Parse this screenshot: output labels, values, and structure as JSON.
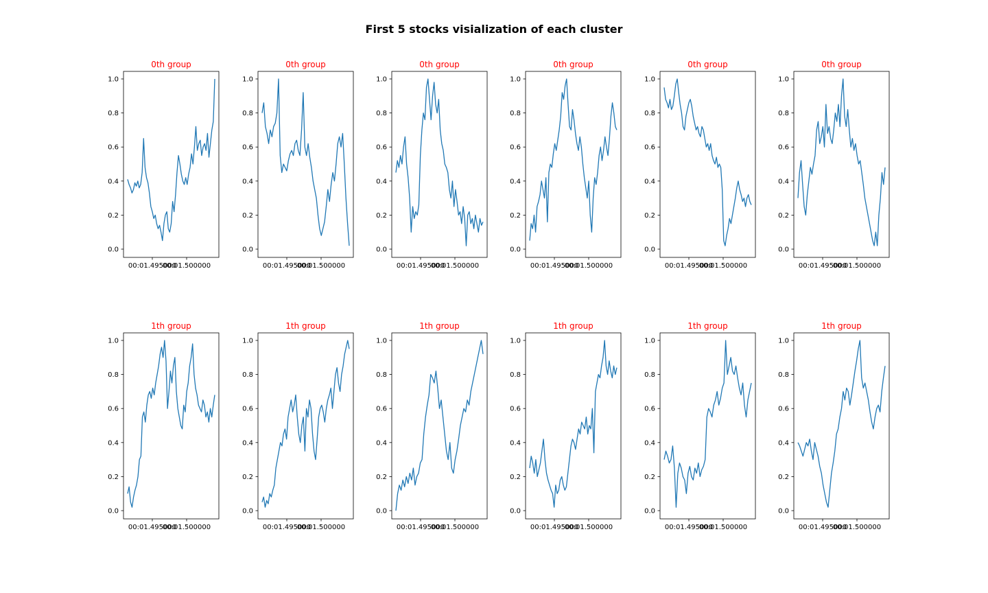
{
  "figure": {
    "title": "First 5 stocks visialization of each cluster",
    "title_color": "#000000",
    "subtitle_color": "#ff0000",
    "line_color": "#1f77b4"
  },
  "chart_data": [
    {
      "type": "line",
      "title": "0th group",
      "row": 0,
      "col": 0,
      "ylim": [
        0,
        1
      ],
      "yticks": [
        "0.0",
        "0.2",
        "0.4",
        "0.6",
        "0.8",
        "1.0"
      ],
      "xticks": [
        "00:01.495000",
        "00:01.500000"
      ],
      "values": [
        0.41,
        0.38,
        0.36,
        0.33,
        0.35,
        0.39,
        0.37,
        0.4,
        0.36,
        0.38,
        0.45,
        0.65,
        0.48,
        0.42,
        0.39,
        0.33,
        0.25,
        0.22,
        0.18,
        0.2,
        0.15,
        0.12,
        0.14,
        0.1,
        0.05,
        0.15,
        0.2,
        0.22,
        0.12,
        0.1,
        0.15,
        0.28,
        0.22,
        0.32,
        0.45,
        0.55,
        0.5,
        0.44,
        0.4,
        0.38,
        0.42,
        0.38,
        0.44,
        0.48,
        0.56,
        0.5,
        0.6,
        0.72,
        0.58,
        0.62,
        0.64,
        0.55,
        0.6,
        0.62,
        0.58,
        0.68,
        0.54,
        0.62,
        0.7,
        0.75,
        1.0
      ]
    },
    {
      "type": "line",
      "title": "0th group",
      "row": 0,
      "col": 1,
      "ylim": [
        0,
        1
      ],
      "yticks": [
        "0.0",
        "0.2",
        "0.4",
        "0.6",
        "0.8",
        "1.0"
      ],
      "xticks": [
        "00:01.495000",
        "00:01.500000"
      ],
      "values": [
        0.8,
        0.86,
        0.72,
        0.68,
        0.62,
        0.7,
        0.66,
        0.72,
        0.74,
        0.8,
        1.0,
        0.55,
        0.45,
        0.5,
        0.48,
        0.46,
        0.52,
        0.56,
        0.58,
        0.55,
        0.62,
        0.64,
        0.58,
        0.55,
        0.7,
        0.92,
        0.6,
        0.55,
        0.62,
        0.54,
        0.48,
        0.4,
        0.35,
        0.3,
        0.2,
        0.12,
        0.08,
        0.12,
        0.16,
        0.25,
        0.35,
        0.28,
        0.38,
        0.45,
        0.4,
        0.5,
        0.62,
        0.66,
        0.6,
        0.68,
        0.5,
        0.3,
        0.15,
        0.02
      ]
    },
    {
      "type": "line",
      "title": "0th group",
      "row": 0,
      "col": 2,
      "ylim": [
        0,
        1
      ],
      "yticks": [
        "0.0",
        "0.2",
        "0.4",
        "0.6",
        "0.8",
        "1.0"
      ],
      "xticks": [
        "00:01.495000",
        "00:01.500000"
      ],
      "values": [
        0.45,
        0.52,
        0.48,
        0.55,
        0.5,
        0.6,
        0.66,
        0.5,
        0.42,
        0.3,
        0.1,
        0.25,
        0.18,
        0.22,
        0.2,
        0.26,
        0.55,
        0.7,
        0.8,
        0.76,
        0.95,
        1.0,
        0.88,
        0.76,
        0.9,
        0.98,
        0.85,
        0.8,
        0.88,
        0.7,
        0.62,
        0.58,
        0.5,
        0.48,
        0.45,
        0.35,
        0.3,
        0.4,
        0.25,
        0.35,
        0.28,
        0.2,
        0.22,
        0.15,
        0.25,
        0.18,
        0.02,
        0.2,
        0.22,
        0.15,
        0.18,
        0.12,
        0.2,
        0.15,
        0.1,
        0.18,
        0.14,
        0.16
      ]
    },
    {
      "type": "line",
      "title": "0th group",
      "row": 0,
      "col": 3,
      "ylim": [
        0,
        1
      ],
      "yticks": [
        "0.0",
        "0.2",
        "0.4",
        "0.6",
        "0.8",
        "1.0"
      ],
      "xticks": [
        "00:01.495000",
        "00:01.500000"
      ],
      "values": [
        0.05,
        0.15,
        0.12,
        0.2,
        0.1,
        0.25,
        0.28,
        0.32,
        0.4,
        0.35,
        0.3,
        0.42,
        0.16,
        0.45,
        0.5,
        0.48,
        0.56,
        0.62,
        0.58,
        0.64,
        0.7,
        0.78,
        0.92,
        0.88,
        0.96,
        1.0,
        0.85,
        0.72,
        0.7,
        0.82,
        0.76,
        0.68,
        0.62,
        0.58,
        0.66,
        0.6,
        0.5,
        0.42,
        0.36,
        0.3,
        0.4,
        0.2,
        0.1,
        0.3,
        0.42,
        0.38,
        0.45,
        0.55,
        0.6,
        0.52,
        0.58,
        0.66,
        0.6,
        0.55,
        0.65,
        0.78,
        0.86,
        0.8,
        0.72,
        0.7
      ]
    },
    {
      "type": "line",
      "title": "0th group",
      "row": 0,
      "col": 4,
      "ylim": [
        0,
        1
      ],
      "yticks": [
        "0.0",
        "0.2",
        "0.4",
        "0.6",
        "0.8",
        "1.0"
      ],
      "xticks": [
        "00:01.495000",
        "00:01.500000"
      ],
      "values": [
        0.95,
        0.88,
        0.86,
        0.83,
        0.88,
        0.82,
        0.84,
        0.9,
        0.97,
        1.0,
        0.92,
        0.85,
        0.8,
        0.72,
        0.7,
        0.78,
        0.82,
        0.86,
        0.88,
        0.84,
        0.78,
        0.74,
        0.7,
        0.72,
        0.68,
        0.66,
        0.72,
        0.7,
        0.65,
        0.6,
        0.62,
        0.58,
        0.62,
        0.55,
        0.52,
        0.5,
        0.54,
        0.48,
        0.5,
        0.48,
        0.35,
        0.05,
        0.02,
        0.08,
        0.12,
        0.18,
        0.15,
        0.2,
        0.25,
        0.3,
        0.36,
        0.4,
        0.35,
        0.32,
        0.28,
        0.3,
        0.25,
        0.3,
        0.32,
        0.28,
        0.26
      ]
    },
    {
      "type": "line",
      "title": "0th group",
      "row": 0,
      "col": 5,
      "ylim": [
        0,
        1
      ],
      "yticks": [
        "0.0",
        "0.2",
        "0.4",
        "0.6",
        "0.8",
        "1.0"
      ],
      "xticks": [
        "00:01.495000",
        "00:01.500000"
      ],
      "values": [
        0.3,
        0.45,
        0.52,
        0.38,
        0.25,
        0.2,
        0.32,
        0.4,
        0.48,
        0.44,
        0.5,
        0.55,
        0.7,
        0.75,
        0.62,
        0.66,
        0.72,
        0.6,
        0.85,
        0.68,
        0.72,
        0.65,
        0.62,
        0.7,
        0.8,
        0.75,
        0.85,
        0.72,
        0.9,
        1.0,
        0.78,
        0.72,
        0.82,
        0.7,
        0.6,
        0.65,
        0.58,
        0.62,
        0.55,
        0.5,
        0.52,
        0.45,
        0.38,
        0.3,
        0.25,
        0.2,
        0.15,
        0.1,
        0.05,
        0.02,
        0.1,
        0.02,
        0.2,
        0.3,
        0.45,
        0.38,
        0.48
      ]
    },
    {
      "type": "line",
      "title": "1th group",
      "row": 1,
      "col": 0,
      "ylim": [
        0,
        1
      ],
      "yticks": [
        "0.0",
        "0.2",
        "0.4",
        "0.6",
        "0.8",
        "1.0"
      ],
      "xticks": [
        "00:01.495000",
        "00:01.500000"
      ],
      "values": [
        0.1,
        0.14,
        0.05,
        0.02,
        0.08,
        0.12,
        0.15,
        0.2,
        0.3,
        0.32,
        0.55,
        0.58,
        0.52,
        0.62,
        0.68,
        0.7,
        0.66,
        0.72,
        0.68,
        0.75,
        0.8,
        0.85,
        0.92,
        0.96,
        0.9,
        1.0,
        0.88,
        0.6,
        0.7,
        0.82,
        0.75,
        0.85,
        0.9,
        0.7,
        0.6,
        0.55,
        0.5,
        0.48,
        0.62,
        0.58,
        0.7,
        0.75,
        0.85,
        0.9,
        0.98,
        0.8,
        0.72,
        0.68,
        0.62,
        0.6,
        0.58,
        0.65,
        0.62,
        0.55,
        0.58,
        0.52,
        0.6,
        0.55,
        0.62,
        0.68
      ]
    },
    {
      "type": "line",
      "title": "1th group",
      "row": 1,
      "col": 1,
      "ylim": [
        0,
        1
      ],
      "yticks": [
        "0.0",
        "0.2",
        "0.4",
        "0.6",
        "0.8",
        "1.0"
      ],
      "xticks": [
        "00:01.495000",
        "00:01.500000"
      ],
      "values": [
        0.05,
        0.08,
        0.02,
        0.06,
        0.04,
        0.1,
        0.08,
        0.12,
        0.15,
        0.25,
        0.3,
        0.35,
        0.4,
        0.38,
        0.45,
        0.48,
        0.42,
        0.55,
        0.6,
        0.65,
        0.58,
        0.62,
        0.68,
        0.55,
        0.45,
        0.4,
        0.5,
        0.55,
        0.35,
        0.6,
        0.55,
        0.65,
        0.6,
        0.45,
        0.35,
        0.3,
        0.42,
        0.55,
        0.6,
        0.62,
        0.58,
        0.52,
        0.6,
        0.65,
        0.68,
        0.72,
        0.6,
        0.7,
        0.8,
        0.84,
        0.75,
        0.7,
        0.8,
        0.85,
        0.92,
        0.96,
        1.0,
        0.95
      ]
    },
    {
      "type": "line",
      "title": "1th group",
      "row": 1,
      "col": 2,
      "ylim": [
        0,
        1
      ],
      "yticks": [
        "0.0",
        "0.2",
        "0.4",
        "0.6",
        "0.8",
        "1.0"
      ],
      "xticks": [
        "00:01.495000",
        "00:01.500000"
      ],
      "values": [
        0.0,
        0.1,
        0.15,
        0.12,
        0.18,
        0.14,
        0.2,
        0.16,
        0.22,
        0.18,
        0.25,
        0.15,
        0.2,
        0.22,
        0.28,
        0.3,
        0.45,
        0.55,
        0.62,
        0.68,
        0.8,
        0.78,
        0.75,
        0.82,
        0.72,
        0.6,
        0.65,
        0.55,
        0.45,
        0.35,
        0.3,
        0.4,
        0.25,
        0.22,
        0.3,
        0.35,
        0.42,
        0.5,
        0.55,
        0.6,
        0.58,
        0.65,
        0.62,
        0.7,
        0.75,
        0.8,
        0.85,
        0.9,
        0.95,
        1.0,
        0.92
      ]
    },
    {
      "type": "line",
      "title": "1th group",
      "row": 1,
      "col": 3,
      "ylim": [
        0,
        1
      ],
      "yticks": [
        "0.0",
        "0.2",
        "0.4",
        "0.6",
        "0.8",
        "1.0"
      ],
      "xticks": [
        "00:01.495000",
        "00:01.500000"
      ],
      "values": [
        0.25,
        0.32,
        0.28,
        0.22,
        0.3,
        0.2,
        0.24,
        0.28,
        0.35,
        0.42,
        0.3,
        0.22,
        0.18,
        0.15,
        0.12,
        0.1,
        0.02,
        0.15,
        0.1,
        0.12,
        0.18,
        0.2,
        0.15,
        0.12,
        0.14,
        0.22,
        0.3,
        0.38,
        0.42,
        0.4,
        0.36,
        0.42,
        0.48,
        0.45,
        0.52,
        0.5,
        0.48,
        0.55,
        0.45,
        0.5,
        0.48,
        0.6,
        0.34,
        0.7,
        0.75,
        0.8,
        0.78,
        0.85,
        0.9,
        1.0,
        0.85,
        0.8,
        0.88,
        0.82,
        0.78,
        0.85,
        0.8,
        0.84
      ]
    },
    {
      "type": "line",
      "title": "1th group",
      "row": 1,
      "col": 4,
      "ylim": [
        0,
        1
      ],
      "yticks": [
        "0.0",
        "0.2",
        "0.4",
        "0.6",
        "0.8",
        "1.0"
      ],
      "xticks": [
        "00:01.495000",
        "00:01.500000"
      ],
      "values": [
        0.3,
        0.35,
        0.32,
        0.28,
        0.3,
        0.38,
        0.25,
        0.02,
        0.22,
        0.28,
        0.25,
        0.2,
        0.18,
        0.1,
        0.22,
        0.26,
        0.2,
        0.18,
        0.25,
        0.22,
        0.28,
        0.2,
        0.24,
        0.26,
        0.3,
        0.55,
        0.6,
        0.58,
        0.55,
        0.62,
        0.65,
        0.7,
        0.62,
        0.66,
        0.72,
        0.75,
        1.0,
        0.8,
        0.85,
        0.9,
        0.82,
        0.8,
        0.85,
        0.78,
        0.72,
        0.68,
        0.75,
        0.62,
        0.55,
        0.65,
        0.7,
        0.75
      ]
    },
    {
      "type": "line",
      "title": "1th group",
      "row": 1,
      "col": 5,
      "ylim": [
        0,
        1
      ],
      "yticks": [
        "0.0",
        "0.2",
        "0.4",
        "0.6",
        "0.8",
        "1.0"
      ],
      "xticks": [
        "00:01.495000",
        "00:01.500000"
      ],
      "values": [
        0.4,
        0.38,
        0.35,
        0.32,
        0.36,
        0.4,
        0.38,
        0.42,
        0.35,
        0.3,
        0.4,
        0.36,
        0.32,
        0.26,
        0.22,
        0.15,
        0.1,
        0.05,
        0.02,
        0.12,
        0.22,
        0.28,
        0.35,
        0.45,
        0.48,
        0.55,
        0.6,
        0.7,
        0.65,
        0.72,
        0.7,
        0.62,
        0.68,
        0.75,
        0.82,
        0.88,
        0.95,
        1.0,
        0.78,
        0.72,
        0.75,
        0.7,
        0.65,
        0.58,
        0.52,
        0.48,
        0.55,
        0.6,
        0.62,
        0.58,
        0.7,
        0.78,
        0.85
      ]
    }
  ]
}
